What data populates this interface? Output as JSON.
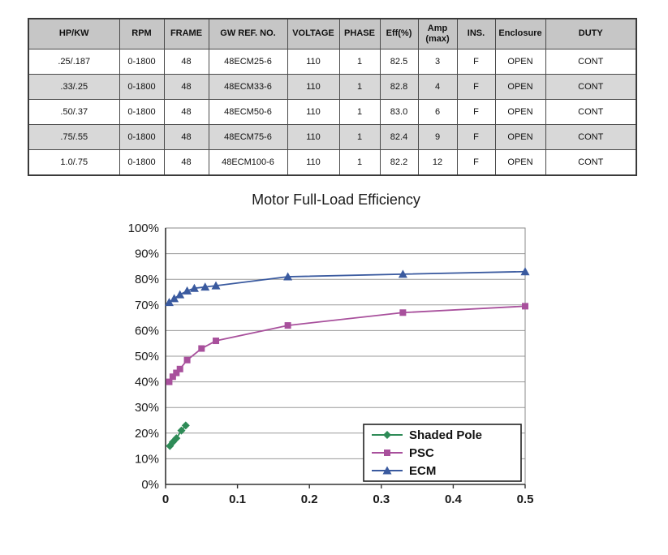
{
  "table": {
    "headers": [
      "HP/KW",
      "RPM",
      "FRAME",
      "GW REF. NO.",
      "VOLTAGE",
      "PHASE",
      "Eff(%)",
      "Amp\n(max)",
      "INS.",
      "Enclosure",
      "DUTY"
    ],
    "rows": [
      [
        ".25/.187",
        "0-1800",
        "48",
        "48ECM25-6",
        "110",
        "1",
        "82.5",
        "3",
        "F",
        "OPEN",
        "CONT"
      ],
      [
        ".33/.25",
        "0-1800",
        "48",
        "48ECM33-6",
        "110",
        "1",
        "82.8",
        "4",
        "F",
        "OPEN",
        "CONT"
      ],
      [
        ".50/.37",
        "0-1800",
        "48",
        "48ECM50-6",
        "110",
        "1",
        "83.0",
        "6",
        "F",
        "OPEN",
        "CONT"
      ],
      [
        ".75/.55",
        "0-1800",
        "48",
        "48ECM75-6",
        "110",
        "1",
        "82.4",
        "9",
        "F",
        "OPEN",
        "CONT"
      ],
      [
        "1.0/.75",
        "0-1800",
        "48",
        "48ECM100-6",
        "110",
        "1",
        "82.2",
        "12",
        "F",
        "OPEN",
        "CONT"
      ]
    ]
  },
  "chart_data": {
    "type": "line",
    "title": "Motor Full-Load Efficiency",
    "xlabel": "",
    "ylabel": "",
    "xlim": [
      0,
      0.5
    ],
    "ylim": [
      0,
      100
    ],
    "grid": "horizontal",
    "legend_position": "bottom-right",
    "x_ticks": [
      {
        "v": 0,
        "label": "0"
      },
      {
        "v": 0.1,
        "label": "0.1"
      },
      {
        "v": 0.2,
        "label": "0.2"
      },
      {
        "v": 0.3,
        "label": "0.3"
      },
      {
        "v": 0.4,
        "label": "0.4"
      },
      {
        "v": 0.5,
        "label": "0.5"
      }
    ],
    "y_ticks": [
      {
        "v": 0,
        "label": "0%"
      },
      {
        "v": 10,
        "label": "10%"
      },
      {
        "v": 20,
        "label": "20%"
      },
      {
        "v": 30,
        "label": "30%"
      },
      {
        "v": 40,
        "label": "40%"
      },
      {
        "v": 50,
        "label": "50%"
      },
      {
        "v": 60,
        "label": "60%"
      },
      {
        "v": 70,
        "label": "70%"
      },
      {
        "v": 80,
        "label": "80%"
      },
      {
        "v": 90,
        "label": "90%"
      },
      {
        "v": 100,
        "label": "100%"
      }
    ],
    "series": [
      {
        "name": "Shaded Pole",
        "color": "#2e8b57",
        "marker": "diamond",
        "points": [
          [
            0.006,
            15
          ],
          [
            0.01,
            16.5
          ],
          [
            0.015,
            18
          ],
          [
            0.022,
            21
          ],
          [
            0.028,
            23
          ]
        ]
      },
      {
        "name": "PSC",
        "color": "#a8509c",
        "marker": "square",
        "points": [
          [
            0.005,
            40
          ],
          [
            0.01,
            42
          ],
          [
            0.015,
            43.5
          ],
          [
            0.02,
            45
          ],
          [
            0.03,
            48.5
          ],
          [
            0.05,
            53
          ],
          [
            0.07,
            56
          ],
          [
            0.17,
            62
          ],
          [
            0.33,
            67
          ],
          [
            0.5,
            69.5
          ]
        ]
      },
      {
        "name": "ECM",
        "color": "#3a5a9f",
        "marker": "triangle",
        "points": [
          [
            0.005,
            71
          ],
          [
            0.012,
            72.5
          ],
          [
            0.02,
            74
          ],
          [
            0.03,
            75.5
          ],
          [
            0.04,
            76.5
          ],
          [
            0.055,
            77
          ],
          [
            0.07,
            77.5
          ],
          [
            0.17,
            81
          ],
          [
            0.33,
            82
          ],
          [
            0.5,
            83
          ]
        ]
      }
    ]
  }
}
